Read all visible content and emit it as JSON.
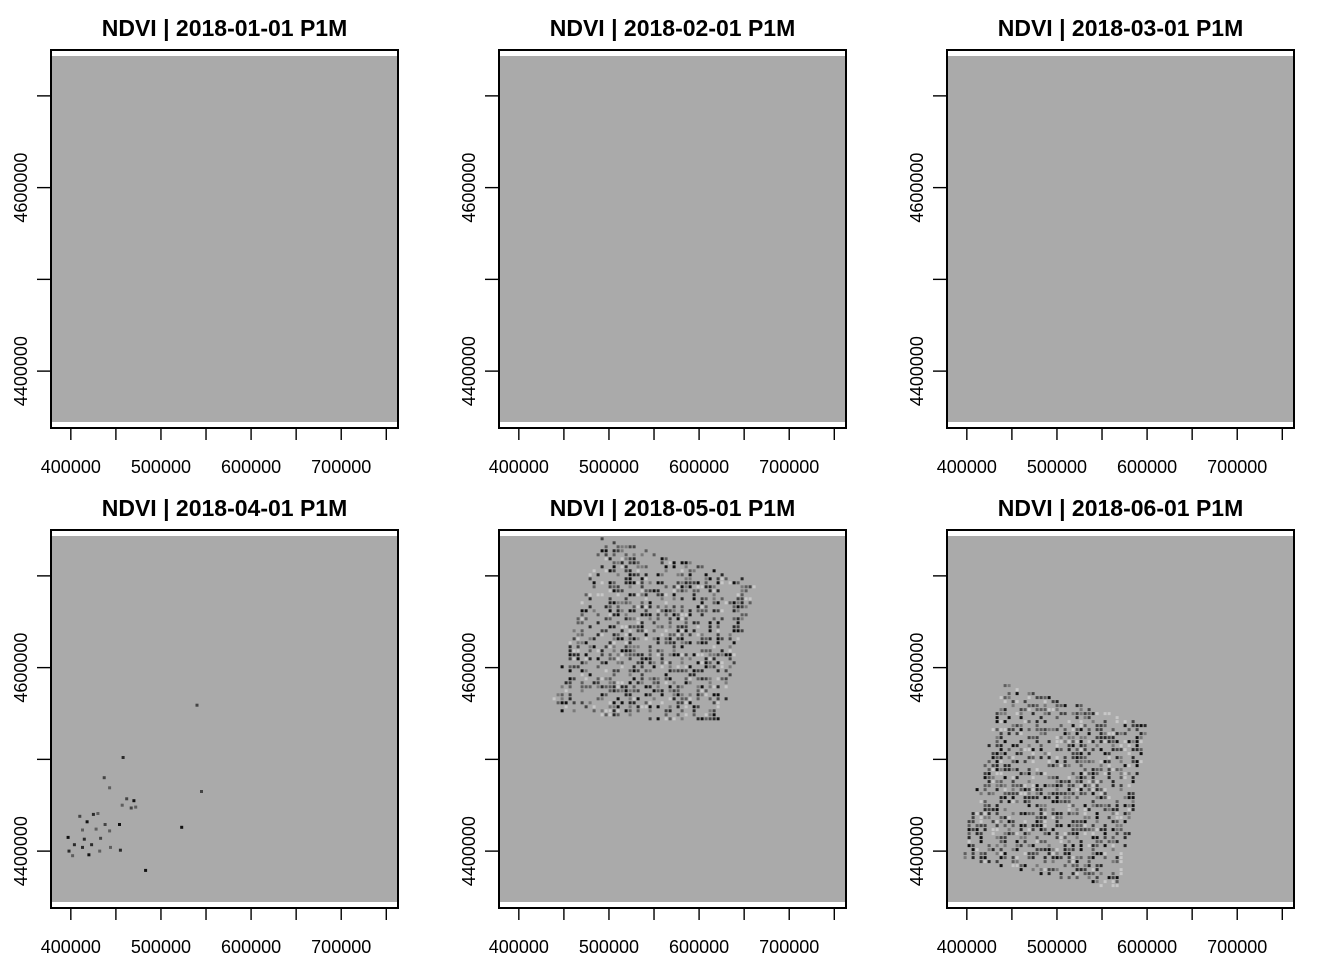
{
  "chart_data": {
    "type": "heatmap",
    "layout": "2 rows x 3 columns",
    "x_ticks": [
      400000,
      500000,
      600000,
      700000
    ],
    "x_tick_labels": [
      "400000",
      "500000",
      "600000",
      "700000"
    ],
    "y_ticks": [
      4400000,
      4600000
    ],
    "y_tick_labels": [
      "4400000",
      "4600000"
    ],
    "minor_tick_step": 50000,
    "xlim": [
      378000,
      763000
    ],
    "ylim": [
      4338000,
      4750000
    ],
    "no_data_color": "#aaaaaa",
    "value_colors": [
      "#111111",
      "#2a2a2a",
      "#444444",
      "#5e5e5e",
      "#7a7a7a",
      "#c8c8c8"
    ],
    "panels": [
      {
        "title": "NDVI | 2018-01-01 P1M",
        "footprint": []
      },
      {
        "title": "NDVI | 2018-02-01 P1M",
        "footprint": []
      },
      {
        "title": "NDVI | 2018-03-01 P1M",
        "footprint": []
      },
      {
        "title": "NDVI | 2018-04-01 P1M",
        "footprint": [],
        "pixels": [
          [
            540000,
            4559000
          ],
          [
            458000,
            4502000
          ],
          [
            437000,
            4480000
          ],
          [
            443000,
            4469000
          ],
          [
            545000,
            4465000
          ],
          [
            462000,
            4457000
          ],
          [
            470000,
            4455000
          ],
          [
            457000,
            4450000
          ],
          [
            467000,
            4447000
          ],
          [
            472000,
            4448000
          ],
          [
            410000,
            4438000
          ],
          [
            425000,
            4440000
          ],
          [
            430000,
            4441000
          ],
          [
            418000,
            4432000
          ],
          [
            438000,
            4429000
          ],
          [
            454000,
            4429000
          ],
          [
            523000,
            4426000
          ],
          [
            413000,
            4423000
          ],
          [
            428000,
            4424000
          ],
          [
            443000,
            4422000
          ],
          [
            397000,
            4415000
          ],
          [
            415000,
            4413000
          ],
          [
            433000,
            4414000
          ],
          [
            404000,
            4407000
          ],
          [
            423000,
            4407000
          ],
          [
            413000,
            4404000
          ],
          [
            444000,
            4404000
          ],
          [
            432000,
            4400000
          ],
          [
            455000,
            4401000
          ],
          [
            398000,
            4400000
          ],
          [
            402000,
            4395000
          ],
          [
            420000,
            4396000
          ],
          [
            483000,
            4379000
          ]
        ]
      },
      {
        "title": "NDVI | 2018-05-01 P1M",
        "footprint": [
          [
            492000,
            4742000
          ],
          [
            663000,
            4693000
          ],
          [
            625000,
            4539000
          ],
          [
            433000,
            4550000
          ]
        ],
        "density": 0.45
      },
      {
        "title": "NDVI | 2018-06-01 P1M",
        "footprint": [
          [
            442000,
            4582000
          ],
          [
            602000,
            4538000
          ],
          [
            570000,
            4357000
          ],
          [
            392000,
            4392000
          ]
        ],
        "density": 0.5
      }
    ]
  }
}
